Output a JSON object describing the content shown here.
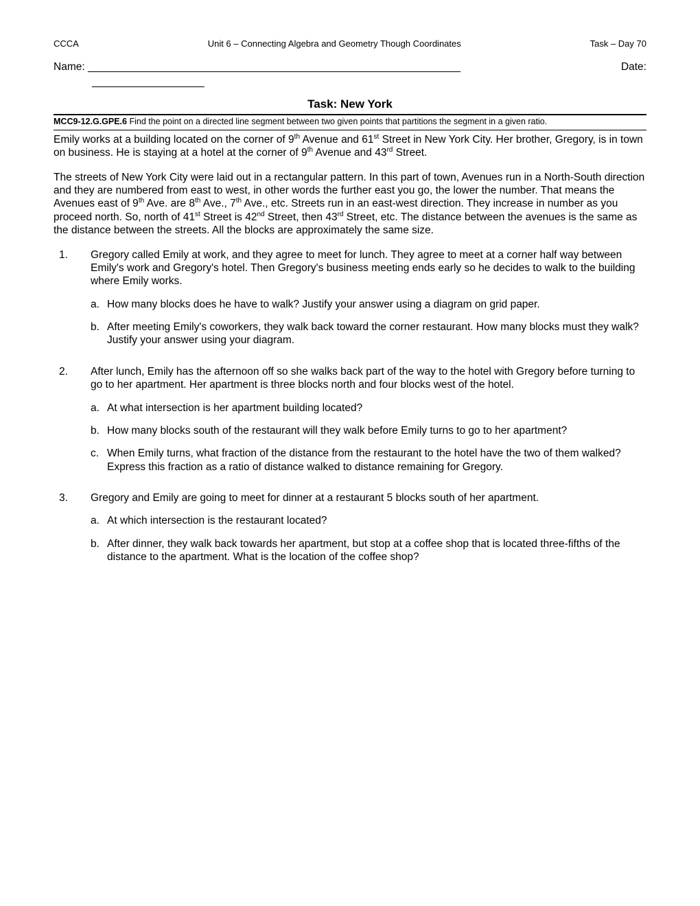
{
  "header": {
    "left": "CCCA",
    "center": "Unit 6 – Connecting Algebra and Geometry Though Coordinates",
    "right": "Task – Day 70"
  },
  "name_label": "Name: _______________________________________________________________",
  "date_label": "Date:",
  "date_blank": "___________________",
  "title": "Task:  New York",
  "standard_code": "MCC9-12.G.GPE.6",
  "standard_text": " Find the point on a directed line segment between two given points that partitions the segment in a given ratio.",
  "intro_html": "Emily works at a building located on the corner of 9<sup>th</sup> Avenue and 61<sup>st</sup> Street in New York City. Her brother, Gregory, is in town on business. He is staying at a hotel at the corner of 9<sup>th</sup> Avenue and 43<sup>rd</sup> Street.",
  "intro2_html": "The streets of New York City were laid out in a rectangular pattern.  In this part of town, Avenues run in a North-South direction and they are numbered from east to west, in other words the further east you go, the lower the number. That means the Avenues east of 9<sup>th</sup> Ave. are 8<sup>th</sup> Ave., 7<sup>th</sup> Ave., etc.  Streets run in an east-west direction. They increase in number as you proceed north. So, north of 41<sup>st</sup> Street is 42<sup>nd</sup> Street, then 43<sup>rd</sup> Street, etc. The distance between the avenues is the same as the distance between the streets.  All the blocks are approximately the same size.",
  "questions": [
    {
      "num": "1.",
      "text": "Gregory called Emily at work, and they agree to meet for lunch. They agree to meet at a corner half way between Emily's work and Gregory's hotel.  Then Gregory's business meeting ends early so he decides to walk to the building where Emily works.",
      "subs": [
        {
          "let": "a.",
          "text": "How many blocks does he have to walk?  Justify your answer using a diagram on grid paper."
        },
        {
          "let": "b.",
          "text": "After meeting Emily's coworkers, they walk back toward the corner restaurant.  How many blocks must they walk? Justify your answer using your diagram."
        }
      ]
    },
    {
      "num": "2.",
      "text": "After lunch, Emily has the afternoon off so she walks back part of the way to the hotel with Gregory before turning to go to her apartment.  Her apartment is three blocks north and four blocks west of the hotel.",
      "subs": [
        {
          "let": "a.",
          "text": "At what intersection is her apartment building located?"
        },
        {
          "let": "b.",
          "text": "How many blocks south of the restaurant will they walk before Emily turns to go to her apartment?"
        },
        {
          "let": "c.",
          "text": "When Emily turns, what fraction of the distance from the restaurant to the hotel have the two of them walked?    Express this fraction as a ratio of distance walked to distance remaining for Gregory."
        }
      ]
    },
    {
      "num": "3.",
      "text": "Gregory and Emily are going to meet for dinner at a restaurant 5 blocks south of her apartment.",
      "subs": [
        {
          "let": "a.",
          "text": "At which intersection is the restaurant located?"
        },
        {
          "let": "b.",
          "text": "After dinner, they walk back towards her apartment, but stop at a coffee shop that is located three-fifths of the distance to the apartment.  What is the location of the coffee shop?"
        }
      ]
    }
  ]
}
